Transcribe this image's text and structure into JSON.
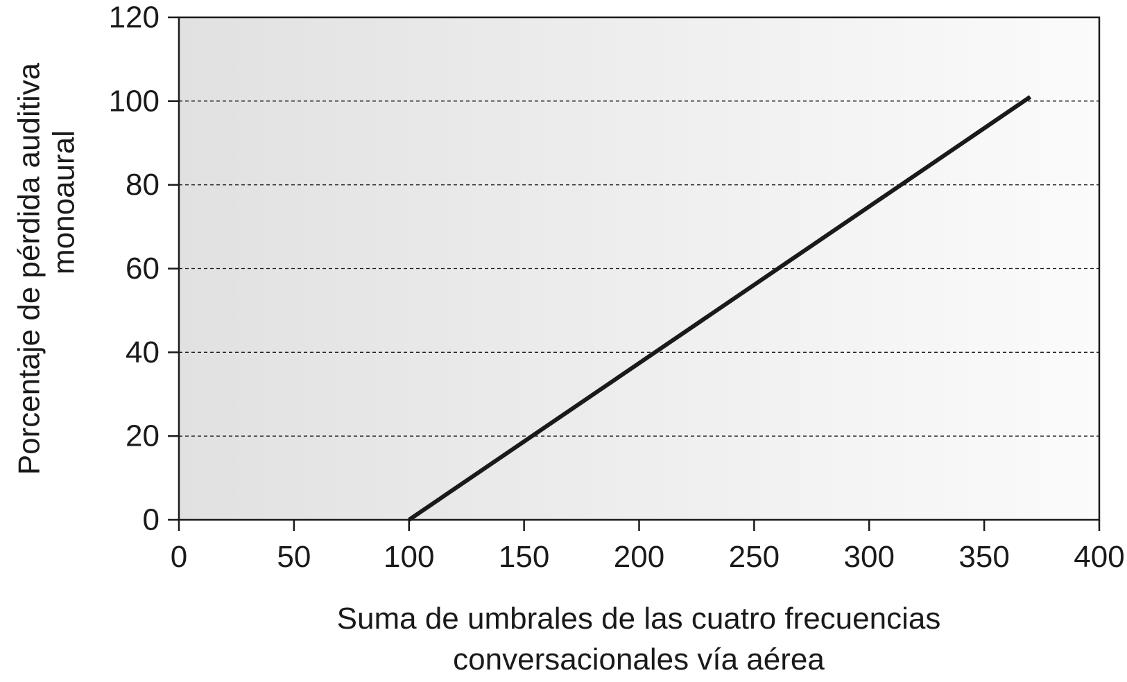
{
  "chart_data": {
    "type": "line",
    "title": "",
    "xlabel": [
      "Suma de umbrales de las cuatro frecuencias",
      "conversacionales vía aérea"
    ],
    "ylabel": [
      "Porcentaje de pérdida auditiva",
      "monoaural"
    ],
    "xlim": [
      0,
      400
    ],
    "ylim": [
      0,
      120
    ],
    "x_ticks": [
      "0",
      "50",
      "100",
      "150",
      "200",
      "250",
      "300",
      "350",
      "400"
    ],
    "y_ticks": [
      "0",
      "20",
      "40",
      "60",
      "80",
      "100",
      "120"
    ],
    "grid": "horizontal dashed lines at 20, 40, 60, 80, 100",
    "background": "gradient from light gray (left) to white (right)",
    "series": [
      {
        "x": [
          100,
          370
        ],
        "y": [
          0,
          101
        ],
        "color": "#1a1a1a"
      }
    ]
  }
}
